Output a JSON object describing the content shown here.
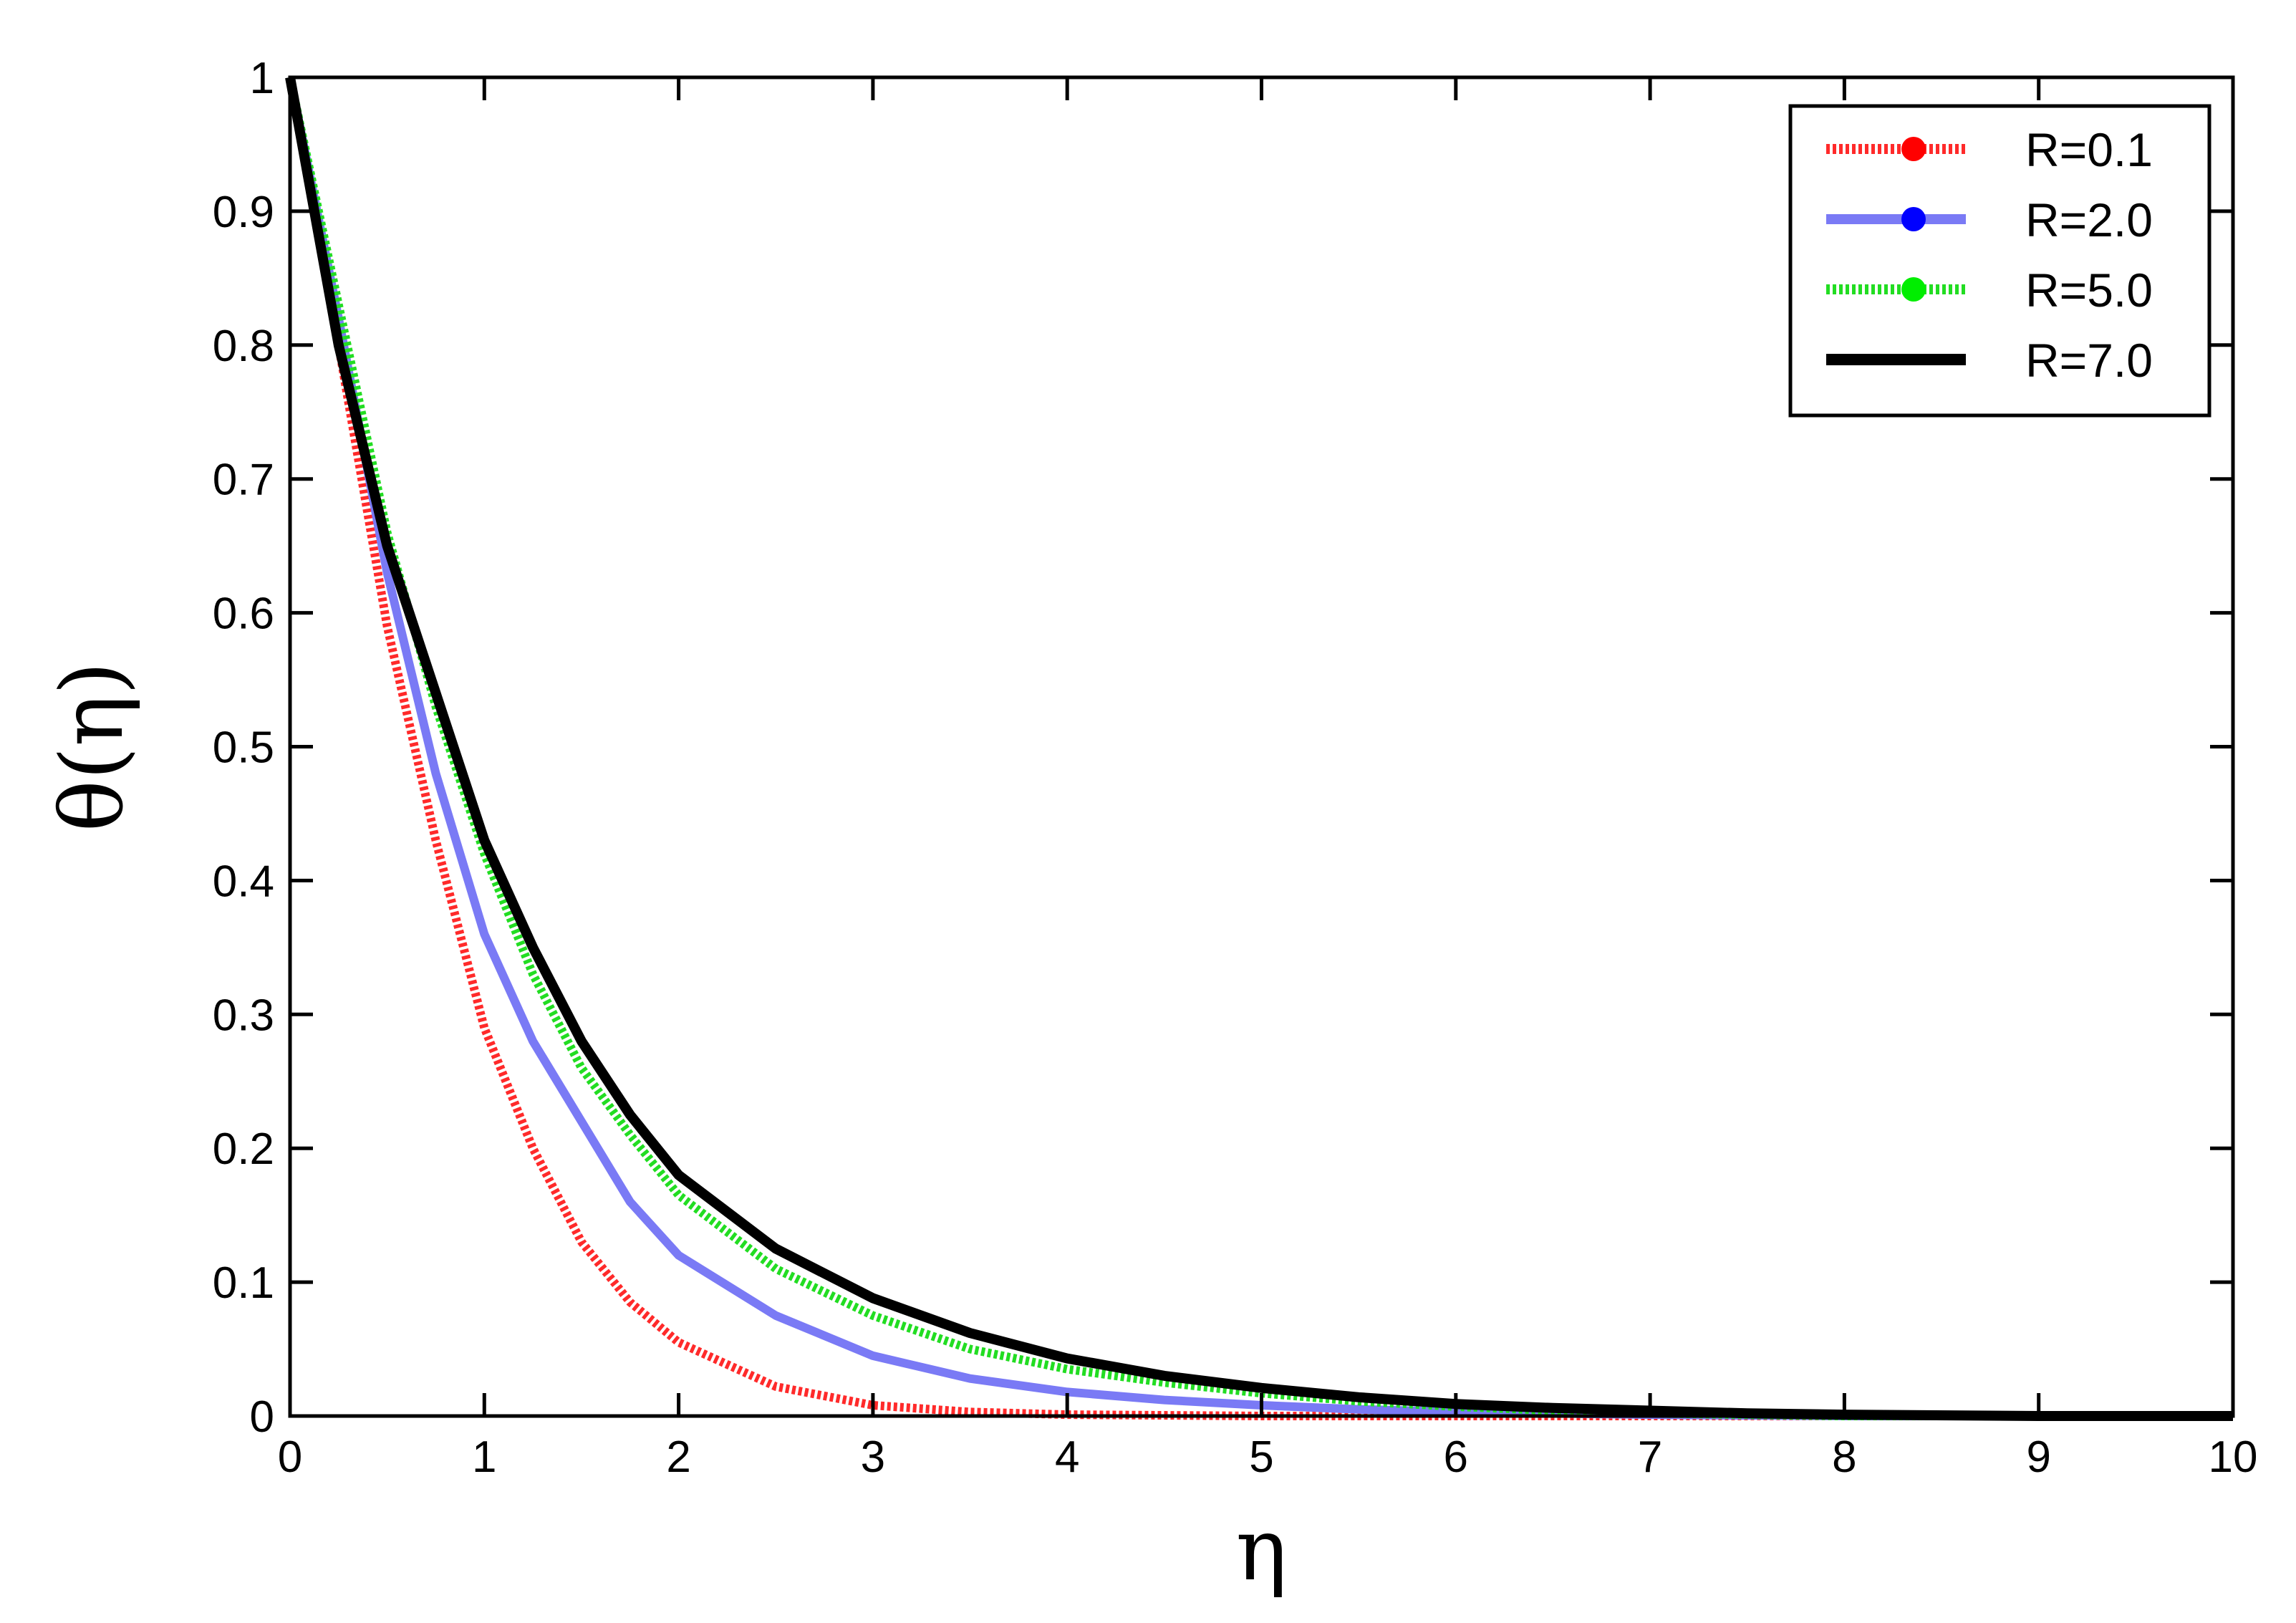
{
  "chart_data": {
    "type": "line",
    "xlabel": "η",
    "ylabel": "θ(η)",
    "xlim": [
      0,
      10
    ],
    "ylim": [
      0,
      1
    ],
    "x_ticks": [
      "0",
      "1",
      "2",
      "3",
      "4",
      "5",
      "6",
      "7",
      "8",
      "9",
      "10"
    ],
    "y_ticks": [
      "0",
      "0.1",
      "0.2",
      "0.3",
      "0.4",
      "0.5",
      "0.6",
      "0.7",
      "0.8",
      "0.9",
      "1"
    ],
    "grid": false,
    "legend_position": "top-right",
    "series": [
      {
        "name": "R=0.1",
        "color": "#ff2a2a",
        "style": "dotted-thick",
        "marker": "circle",
        "x": [
          0,
          0.25,
          0.5,
          0.75,
          1.0,
          1.25,
          1.5,
          1.75,
          2.0,
          2.5,
          3.0,
          3.5,
          4.0,
          5.0,
          6.0,
          7.0,
          8.0,
          9.0,
          10.0
        ],
        "y": [
          1.0,
          0.8,
          0.59,
          0.43,
          0.29,
          0.2,
          0.13,
          0.085,
          0.055,
          0.022,
          0.008,
          0.003,
          0.001,
          0.0,
          0.0,
          0.0,
          0.0,
          0.0,
          0.0
        ]
      },
      {
        "name": "R=2.0",
        "color": "#7a7af5",
        "style": "solid-thick",
        "marker": "circle",
        "x": [
          0,
          0.25,
          0.5,
          0.75,
          1.0,
          1.25,
          1.5,
          1.75,
          2.0,
          2.5,
          3.0,
          3.5,
          4.0,
          4.5,
          5.0,
          5.5,
          6.0,
          7.0,
          8.0,
          9.0,
          10.0
        ],
        "y": [
          1.0,
          0.82,
          0.63,
          0.48,
          0.36,
          0.28,
          0.22,
          0.16,
          0.12,
          0.075,
          0.045,
          0.028,
          0.018,
          0.012,
          0.008,
          0.005,
          0.003,
          0.001,
          0.0,
          0.0,
          0.0
        ]
      },
      {
        "name": "R=5.0",
        "color": "#22dd22",
        "style": "dotted-thick",
        "marker": "circle",
        "x": [
          0,
          0.25,
          0.5,
          0.75,
          1.0,
          1.25,
          1.5,
          1.75,
          2.0,
          2.5,
          3.0,
          3.5,
          4.0,
          4.5,
          5.0,
          5.5,
          6.0,
          6.5,
          7.0,
          8.0,
          9.0,
          10.0
        ],
        "y": [
          1.0,
          0.83,
          0.66,
          0.53,
          0.42,
          0.33,
          0.26,
          0.21,
          0.165,
          0.11,
          0.075,
          0.05,
          0.035,
          0.025,
          0.017,
          0.011,
          0.007,
          0.004,
          0.002,
          0.0,
          0.0,
          0.0
        ]
      },
      {
        "name": "R=7.0",
        "color": "#000000",
        "style": "solid-thick",
        "marker": "none",
        "x": [
          0,
          0.25,
          0.5,
          0.75,
          1.0,
          1.25,
          1.5,
          1.75,
          2.0,
          2.5,
          3.0,
          3.5,
          4.0,
          4.5,
          5.0,
          5.5,
          6.0,
          6.5,
          7.0,
          7.5,
          8.0,
          9.0,
          10.0
        ],
        "y": [
          1.0,
          0.8,
          0.65,
          0.54,
          0.43,
          0.35,
          0.28,
          0.225,
          0.18,
          0.125,
          0.088,
          0.062,
          0.043,
          0.03,
          0.021,
          0.014,
          0.009,
          0.006,
          0.004,
          0.002,
          0.001,
          0.0,
          0.0
        ]
      }
    ]
  }
}
